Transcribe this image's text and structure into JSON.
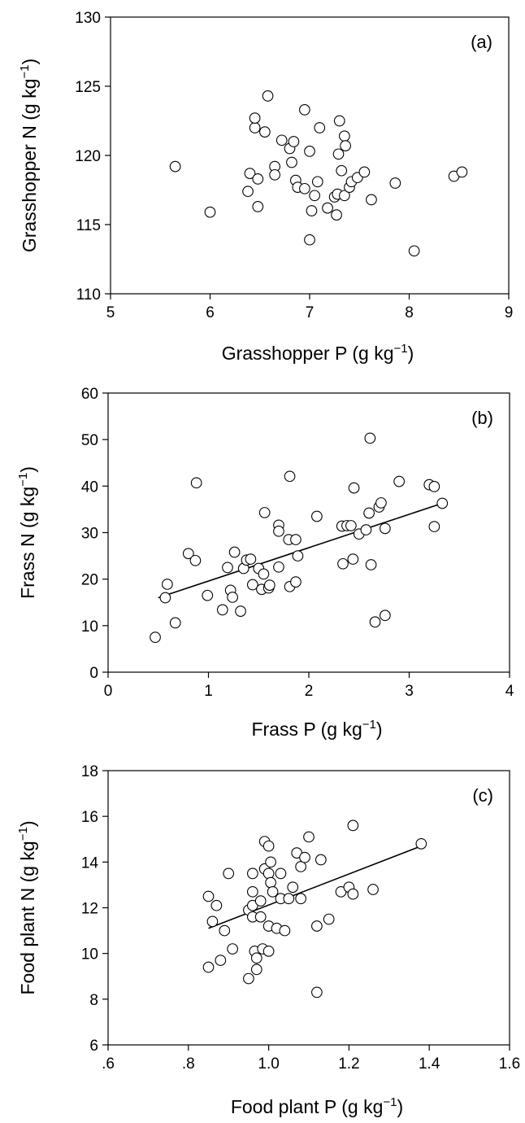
{
  "chart_data": [
    {
      "type": "scatter",
      "panel_label": "(a)",
      "xlabel": "Grasshopper P  (g kg",
      "xlabel_sup": "−1",
      "xlabel_close": ")",
      "ylabel": "Grasshopper N  (g kg",
      "ylabel_sup": "−1",
      "ylabel_close": ")",
      "xlim": [
        5,
        9
      ],
      "ylim": [
        110,
        130
      ],
      "xticks": [
        "5",
        "6",
        "7",
        "8",
        "9"
      ],
      "yticks": [
        "110",
        "115",
        "120",
        "125",
        "130"
      ],
      "grid": false,
      "trendline": null,
      "points": [
        [
          5.65,
          119.2
        ],
        [
          6.0,
          115.9
        ],
        [
          6.38,
          117.4
        ],
        [
          6.4,
          118.7
        ],
        [
          6.45,
          122.0
        ],
        [
          6.45,
          122.7
        ],
        [
          6.48,
          118.3
        ],
        [
          6.48,
          116.3
        ],
        [
          6.55,
          121.7
        ],
        [
          6.58,
          124.3
        ],
        [
          6.65,
          119.2
        ],
        [
          6.65,
          118.6
        ],
        [
          6.72,
          121.1
        ],
        [
          6.8,
          120.5
        ],
        [
          6.82,
          119.5
        ],
        [
          6.84,
          121.0
        ],
        [
          6.86,
          118.2
        ],
        [
          6.88,
          117.7
        ],
        [
          6.95,
          123.3
        ],
        [
          6.95,
          117.6
        ],
        [
          7.0,
          113.9
        ],
        [
          7.0,
          120.3
        ],
        [
          7.02,
          116.0
        ],
        [
          7.05,
          117.1
        ],
        [
          7.08,
          118.1
        ],
        [
          7.1,
          122.0
        ],
        [
          7.18,
          116.2
        ],
        [
          7.25,
          117.0
        ],
        [
          7.27,
          115.7
        ],
        [
          7.28,
          117.2
        ],
        [
          7.29,
          120.1
        ],
        [
          7.3,
          122.5
        ],
        [
          7.32,
          118.9
        ],
        [
          7.35,
          117.1
        ],
        [
          7.35,
          121.4
        ],
        [
          7.36,
          120.7
        ],
        [
          7.4,
          117.7
        ],
        [
          7.42,
          118.1
        ],
        [
          7.48,
          118.4
        ],
        [
          7.55,
          118.8
        ],
        [
          7.62,
          116.8
        ],
        [
          7.86,
          118.0
        ],
        [
          8.05,
          113.1
        ],
        [
          8.45,
          118.5
        ],
        [
          8.53,
          118.8
        ]
      ]
    },
    {
      "type": "scatter",
      "panel_label": "(b)",
      "xlabel": "Frass P  (g kg",
      "xlabel_sup": "−1",
      "xlabel_close": ")",
      "ylabel": "Frass N  (g kg",
      "ylabel_sup": "−1",
      "ylabel_close": ")",
      "xlim": [
        0,
        4
      ],
      "ylim": [
        0,
        60
      ],
      "xticks": [
        "0",
        "1",
        "2",
        "3",
        "4"
      ],
      "yticks": [
        "0",
        "10",
        "20",
        "30",
        "40",
        "50",
        "60"
      ],
      "grid": false,
      "trendline": {
        "x": [
          0.5,
          3.33
        ],
        "y": [
          16.0,
          36.3
        ]
      },
      "points": [
        [
          0.47,
          7.5
        ],
        [
          0.57,
          16.0
        ],
        [
          0.59,
          18.9
        ],
        [
          0.67,
          10.6
        ],
        [
          0.8,
          25.5
        ],
        [
          0.87,
          24.0
        ],
        [
          0.88,
          40.7
        ],
        [
          0.99,
          16.5
        ],
        [
          1.14,
          13.4
        ],
        [
          1.19,
          22.5
        ],
        [
          1.22,
          17.6
        ],
        [
          1.24,
          16.1
        ],
        [
          1.26,
          25.8
        ],
        [
          1.32,
          13.1
        ],
        [
          1.35,
          22.3
        ],
        [
          1.38,
          24.1
        ],
        [
          1.42,
          24.3
        ],
        [
          1.44,
          18.8
        ],
        [
          1.5,
          22.3
        ],
        [
          1.53,
          17.8
        ],
        [
          1.55,
          21.1
        ],
        [
          1.56,
          34.3
        ],
        [
          1.6,
          18.1
        ],
        [
          1.61,
          18.7
        ],
        [
          1.7,
          31.6
        ],
        [
          1.7,
          30.3
        ],
        [
          1.7,
          22.6
        ],
        [
          1.8,
          28.5
        ],
        [
          1.81,
          42.1
        ],
        [
          1.81,
          18.4
        ],
        [
          1.87,
          19.4
        ],
        [
          1.87,
          28.5
        ],
        [
          1.89,
          25.0
        ],
        [
          2.08,
          33.5
        ],
        [
          2.33,
          31.4
        ],
        [
          2.34,
          23.3
        ],
        [
          2.38,
          31.5
        ],
        [
          2.42,
          31.5
        ],
        [
          2.44,
          24.3
        ],
        [
          2.45,
          39.6
        ],
        [
          2.5,
          29.7
        ],
        [
          2.57,
          30.6
        ],
        [
          2.6,
          34.2
        ],
        [
          2.61,
          50.3
        ],
        [
          2.62,
          23.1
        ],
        [
          2.66,
          10.8
        ],
        [
          2.7,
          35.5
        ],
        [
          2.72,
          36.4
        ],
        [
          2.76,
          12.2
        ],
        [
          2.76,
          30.9
        ],
        [
          2.9,
          41.0
        ],
        [
          3.2,
          40.3
        ],
        [
          3.25,
          39.9
        ],
        [
          3.25,
          31.3
        ],
        [
          3.33,
          36.3
        ]
      ]
    },
    {
      "type": "scatter",
      "panel_label": "(c)",
      "xlabel": "Food plant P (g kg",
      "xlabel_sup": "−1",
      "xlabel_close": ")",
      "ylabel": "Food plant N (g kg",
      "ylabel_sup": "−1",
      "ylabel_close": ")",
      "xlim": [
        0.6,
        1.6
      ],
      "ylim": [
        6,
        18
      ],
      "xticks": [
        ".6",
        ".8",
        "1.0",
        "1.2",
        "1.4",
        "1.6"
      ],
      "yticks": [
        "6",
        "8",
        "10",
        "12",
        "14",
        "16",
        "18"
      ],
      "grid": false,
      "trendline": {
        "x": [
          0.85,
          1.38
        ],
        "y": [
          11.1,
          14.7
        ]
      },
      "points": [
        [
          0.85,
          12.5
        ],
        [
          0.85,
          9.4
        ],
        [
          0.86,
          11.4
        ],
        [
          0.87,
          12.1
        ],
        [
          0.88,
          9.7
        ],
        [
          0.89,
          11.0
        ],
        [
          0.9,
          13.5
        ],
        [
          0.91,
          10.2
        ],
        [
          0.95,
          8.9
        ],
        [
          0.95,
          11.9
        ],
        [
          0.96,
          11.6
        ],
        [
          0.96,
          12.1
        ],
        [
          0.96,
          13.5
        ],
        [
          0.96,
          12.7
        ],
        [
          0.965,
          10.1
        ],
        [
          0.97,
          9.8
        ],
        [
          0.97,
          9.3
        ],
        [
          0.98,
          12.3
        ],
        [
          0.98,
          11.6
        ],
        [
          0.985,
          10.2
        ],
        [
          0.99,
          14.9
        ],
        [
          0.99,
          13.7
        ],
        [
          1.0,
          11.2
        ],
        [
          1.0,
          10.1
        ],
        [
          1.0,
          14.7
        ],
        [
          1.0,
          13.5
        ],
        [
          1.005,
          14.0
        ],
        [
          1.005,
          13.1
        ],
        [
          1.01,
          12.7
        ],
        [
          1.02,
          11.1
        ],
        [
          1.03,
          12.4
        ],
        [
          1.03,
          13.5
        ],
        [
          1.04,
          11.0
        ],
        [
          1.05,
          12.4
        ],
        [
          1.06,
          12.9
        ],
        [
          1.07,
          14.4
        ],
        [
          1.08,
          13.8
        ],
        [
          1.08,
          12.4
        ],
        [
          1.09,
          14.2
        ],
        [
          1.1,
          15.1
        ],
        [
          1.12,
          11.2
        ],
        [
          1.13,
          14.1
        ],
        [
          1.15,
          11.5
        ],
        [
          1.18,
          12.7
        ],
        [
          1.2,
          12.9
        ],
        [
          1.21,
          15.6
        ],
        [
          1.21,
          12.6
        ],
        [
          1.26,
          12.8
        ],
        [
          1.38,
          14.8
        ],
        [
          1.12,
          8.3
        ]
      ]
    }
  ]
}
